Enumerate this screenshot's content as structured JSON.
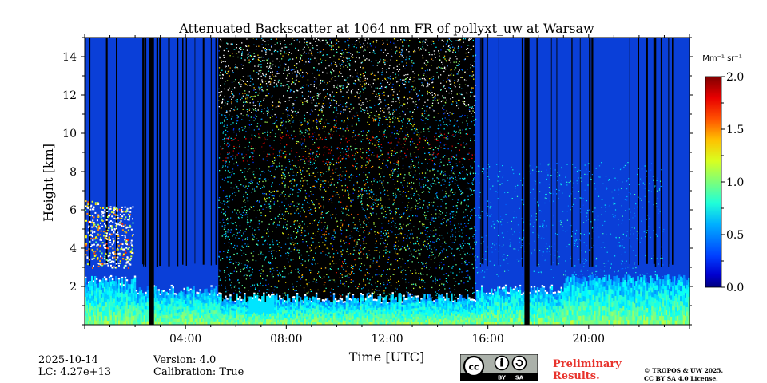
{
  "chart_data": {
    "type": "heatmap",
    "title": "Attenuated Backscatter at 1064 nm FR of pollyxt_uw at Warsaw",
    "xlabel": "Time [UTC]",
    "ylabel": "Height [km]",
    "xlim_hours": [
      0,
      24
    ],
    "ylim_km": [
      0,
      15
    ],
    "x_ticks": [
      {
        "value": 4,
        "label": "04:00"
      },
      {
        "value": 8,
        "label": "08:00"
      },
      {
        "value": 12,
        "label": "12:00"
      },
      {
        "value": 16,
        "label": "16:00"
      },
      {
        "value": 20,
        "label": "20:00"
      }
    ],
    "y_ticks": [
      {
        "value": 2,
        "label": "2"
      },
      {
        "value": 4,
        "label": "4"
      },
      {
        "value": 6,
        "label": "6"
      },
      {
        "value": 8,
        "label": "8"
      },
      {
        "value": 10,
        "label": "10"
      },
      {
        "value": 12,
        "label": "12"
      },
      {
        "value": 14,
        "label": "14"
      }
    ],
    "colorbar": {
      "unit": "Mm⁻¹ sr⁻¹",
      "range": [
        0.0,
        2.0
      ],
      "ticks": [
        {
          "value": 0.0,
          "label": "0.0"
        },
        {
          "value": 0.5,
          "label": "0.5"
        },
        {
          "value": 1.0,
          "label": "1.0"
        },
        {
          "value": 1.5,
          "label": "1.5"
        },
        {
          "value": 2.0,
          "label": "2.0"
        }
      ],
      "colormap": "jet"
    },
    "features": {
      "daytime_noise_hours": [
        5.3,
        15.5
      ],
      "boundary_layer_top_km": {
        "night": 1.8,
        "day": 1.4
      },
      "early_aerosol_layer": {
        "hours": [
          0,
          1.9
        ],
        "km": [
          3.0,
          6.5
        ]
      },
      "data_gaps_hours": [
        [
          2.55,
          2.75
        ],
        [
          17.45,
          17.65
        ]
      ]
    }
  },
  "footer": {
    "date": "2025-10-14",
    "lc": "LC: 4.27e+13",
    "version": "Version: 4.0",
    "calibration": "Calibration: True",
    "preliminary_line1": "Preliminary",
    "preliminary_line2": "Results.",
    "copyright_line1": "© TROPOS & UW 2025.",
    "copyright_line2": "CC BY SA 4.0 License.",
    "license_badge": {
      "by": "BY",
      "sa": "SA"
    }
  }
}
